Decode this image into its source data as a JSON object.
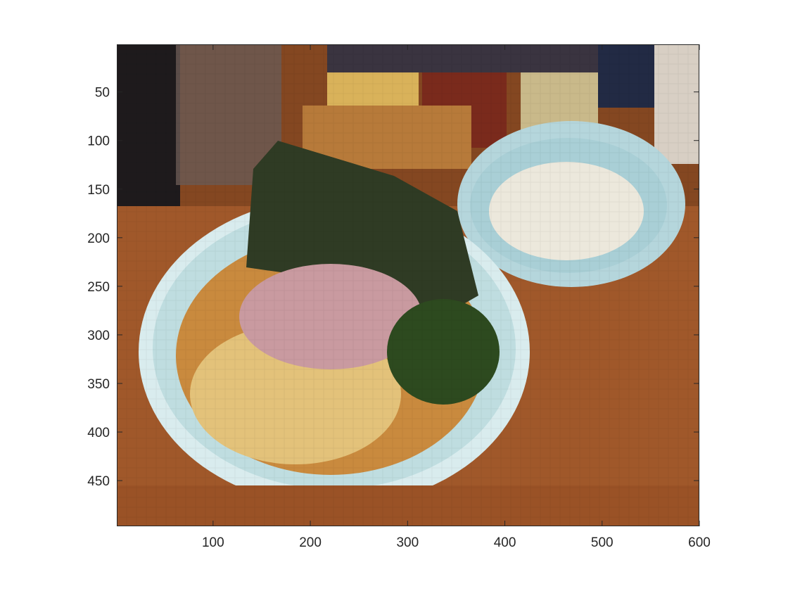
{
  "figure": {
    "image": {
      "description_icon": "pixelated-food-photo",
      "palette": {
        "table": "#a0582a",
        "table_dark": "#7a3f1c",
        "bowl": "#bfdde0",
        "bowl_rim": "#d9ecee",
        "broth": "#c98a3e",
        "noodle": "#e3c27a",
        "nori": "#2f3b24",
        "pork": "#c99aa0",
        "spinach": "#2d4a1f",
        "rice": "#ece8dc",
        "jar_amber": "#d9b25a",
        "jar_red": "#7a2a1c",
        "dark": "#1e1a1c"
      }
    },
    "x_axis": {
      "range": [
        1,
        600
      ],
      "ticks": [
        {
          "value": 100,
          "label": "100"
        },
        {
          "value": 200,
          "label": "200"
        },
        {
          "value": 300,
          "label": "300"
        },
        {
          "value": 400,
          "label": "400"
        },
        {
          "value": 500,
          "label": "500"
        },
        {
          "value": 600,
          "label": "600"
        }
      ]
    },
    "y_axis": {
      "range": [
        1,
        497
      ],
      "reversed": true,
      "ticks": [
        {
          "value": 50,
          "label": "50"
        },
        {
          "value": 100,
          "label": "100"
        },
        {
          "value": 150,
          "label": "150"
        },
        {
          "value": 200,
          "label": "200"
        },
        {
          "value": 250,
          "label": "250"
        },
        {
          "value": 300,
          "label": "300"
        },
        {
          "value": 350,
          "label": "350"
        },
        {
          "value": 400,
          "label": "400"
        },
        {
          "value": 450,
          "label": "450"
        }
      ]
    }
  }
}
